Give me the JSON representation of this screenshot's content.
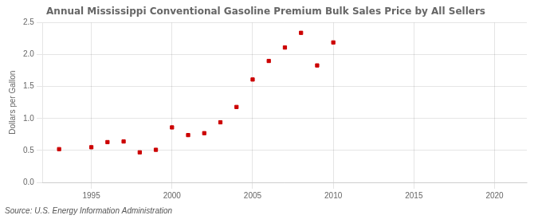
{
  "chart_data": {
    "type": "scatter",
    "title": "Annual Mississippi Conventional Gasoline Premium Bulk Sales Price by All Sellers",
    "y_label": "Dollars per Gallon",
    "annotations": [
      "Source: U.S. Energy Information Administration"
    ],
    "x": [
      1993,
      1995,
      1996,
      1997,
      1998,
      1999,
      2000,
      2001,
      2002,
      2003,
      2004,
      2005,
      2006,
      2007,
      2008,
      2009,
      2010
    ],
    "values": [
      0.52,
      0.55,
      0.63,
      0.64,
      0.47,
      0.51,
      0.86,
      0.74,
      0.77,
      0.94,
      1.18,
      1.61,
      1.9,
      2.11,
      2.34,
      1.83,
      2.19
    ],
    "color": "#cc0000",
    "marker": "square",
    "xlim": [
      1992,
      2022
    ],
    "ylim": [
      0.0,
      2.5
    ],
    "xticks": [
      1995,
      2000,
      2005,
      2010,
      2015,
      2020
    ],
    "yticks": [
      {
        "value": 0.0,
        "label": "0.0"
      },
      0.5,
      {
        "value": 1.0,
        "label": "1.0"
      },
      1.5,
      {
        "value": 2.0,
        "label": "2.0"
      },
      2.5
    ],
    "grid": true
  }
}
